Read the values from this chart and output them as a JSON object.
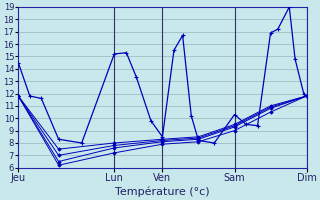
{
  "xlabel": "Température (°c)",
  "background_color": "#c8e8ec",
  "grid_color": "#9fbfc4",
  "line_color": "#0000bb",
  "vline_color": "#333366",
  "ylim": [
    6,
    19
  ],
  "yticks": [
    6,
    7,
    8,
    9,
    10,
    11,
    12,
    13,
    14,
    15,
    16,
    17,
    18,
    19
  ],
  "xtick_labels": [
    "Jeu",
    "Lun",
    "Ven",
    "Sam",
    "Dim"
  ],
  "xtick_positions": [
    0,
    0.333,
    0.5,
    0.75,
    1.0
  ],
  "vline_positions": [
    0.333,
    0.5,
    0.75,
    1.0
  ],
  "lines": [
    {
      "x": [
        0.0,
        0.04,
        0.08,
        0.14,
        0.22,
        0.333,
        0.375,
        0.41,
        0.46,
        0.5,
        0.54,
        0.57,
        0.6,
        0.625,
        0.68,
        0.75,
        0.79,
        0.83,
        0.875,
        0.9,
        0.94,
        0.96,
        0.99,
        1.0
      ],
      "y": [
        14.5,
        11.8,
        11.6,
        8.3,
        8.0,
        15.2,
        15.3,
        13.3,
        9.8,
        8.5,
        15.5,
        16.7,
        10.2,
        8.2,
        8.0,
        10.3,
        9.5,
        9.4,
        16.9,
        17.2,
        19.0,
        14.8,
        12.0,
        11.8
      ]
    },
    {
      "x": [
        0.0,
        0.14,
        0.333,
        0.5,
        0.625,
        0.75,
        0.875,
        1.0
      ],
      "y": [
        11.8,
        7.5,
        8.0,
        8.3,
        8.5,
        9.5,
        11.0,
        11.8
      ]
    },
    {
      "x": [
        0.0,
        0.14,
        0.333,
        0.5,
        0.625,
        0.75,
        0.875,
        1.0
      ],
      "y": [
        11.8,
        6.5,
        7.6,
        8.1,
        8.3,
        9.3,
        10.8,
        11.8
      ]
    },
    {
      "x": [
        0.0,
        0.14,
        0.333,
        0.5,
        0.625,
        0.75,
        0.875,
        1.0
      ],
      "y": [
        11.8,
        7.0,
        7.8,
        8.2,
        8.4,
        9.4,
        10.9,
        11.8
      ]
    },
    {
      "x": [
        0.0,
        0.14,
        0.333,
        0.5,
        0.625,
        0.75,
        0.875,
        1.0
      ],
      "y": [
        11.8,
        6.2,
        7.2,
        7.9,
        8.1,
        9.0,
        10.5,
        11.8
      ]
    }
  ]
}
